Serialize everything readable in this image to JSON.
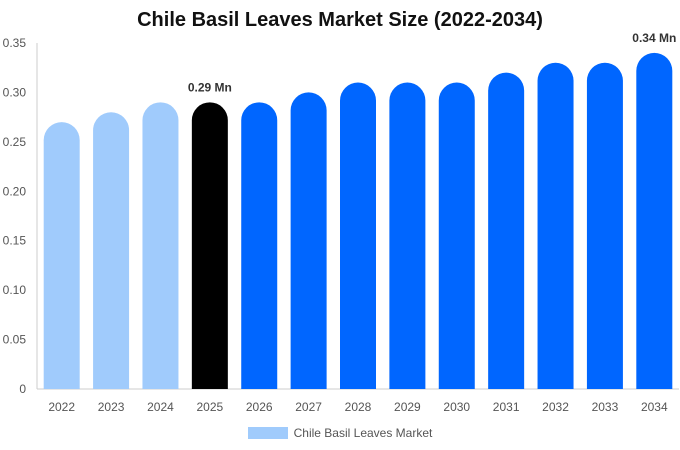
{
  "chart_data": {
    "type": "bar",
    "title": "Chile Basil Leaves Market Size (2022-2034)",
    "categories": [
      "2022",
      "2023",
      "2024",
      "2025",
      "2026",
      "2027",
      "2028",
      "2029",
      "2030",
      "2031",
      "2032",
      "2033",
      "2034"
    ],
    "series": [
      {
        "name": "Chile Basil Leaves Market",
        "values": [
          0.27,
          0.28,
          0.29,
          0.29,
          0.29,
          0.3,
          0.31,
          0.31,
          0.31,
          0.32,
          0.33,
          0.33,
          0.34
        ]
      }
    ],
    "ylim": [
      0,
      0.35
    ],
    "yticks": [
      "0",
      "0.05",
      "0.10",
      "0.15",
      "0.20",
      "0.25",
      "0.30",
      "0.35"
    ],
    "bar_colors": [
      "#a0cbfc",
      "#a0cbfc",
      "#a0cbfc",
      "#000000",
      "#0066ff",
      "#0066ff",
      "#0066ff",
      "#0066ff",
      "#0066ff",
      "#0066ff",
      "#0066ff",
      "#0066ff",
      "#0066ff"
    ],
    "legend_color": "#a0cbfc",
    "data_labels": [
      {
        "index": 3,
        "text": "0.29 Mn"
      },
      {
        "index": 12,
        "text": "0.34 Mn"
      }
    ],
    "grid": false,
    "legend_position": "bottom-center"
  }
}
